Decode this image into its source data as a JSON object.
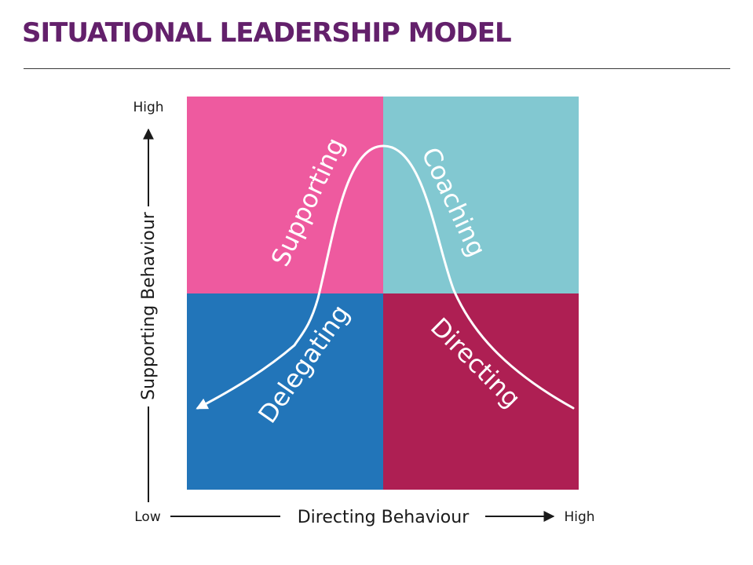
{
  "header": {
    "title": "SITUATIONAL LEADERSHIP MODEL"
  },
  "quadrants": {
    "supporting": {
      "label": "Supporting",
      "color": "#ee5a9f"
    },
    "coaching": {
      "label": "Coaching",
      "color": "#82c8d1"
    },
    "delegating": {
      "label": "Delegating",
      "color": "#2275b9"
    },
    "directing": {
      "label": "Directing",
      "color": "#ae1f53"
    }
  },
  "y_axis": {
    "title": "Supporting Behaviour",
    "high_label": "High"
  },
  "x_axis": {
    "title": "Directing Behaviour",
    "low_label": "Low",
    "high_label": "High"
  },
  "colors": {
    "title": "#63206b",
    "curve": "#ffffff",
    "axis": "#1a1a1a"
  }
}
